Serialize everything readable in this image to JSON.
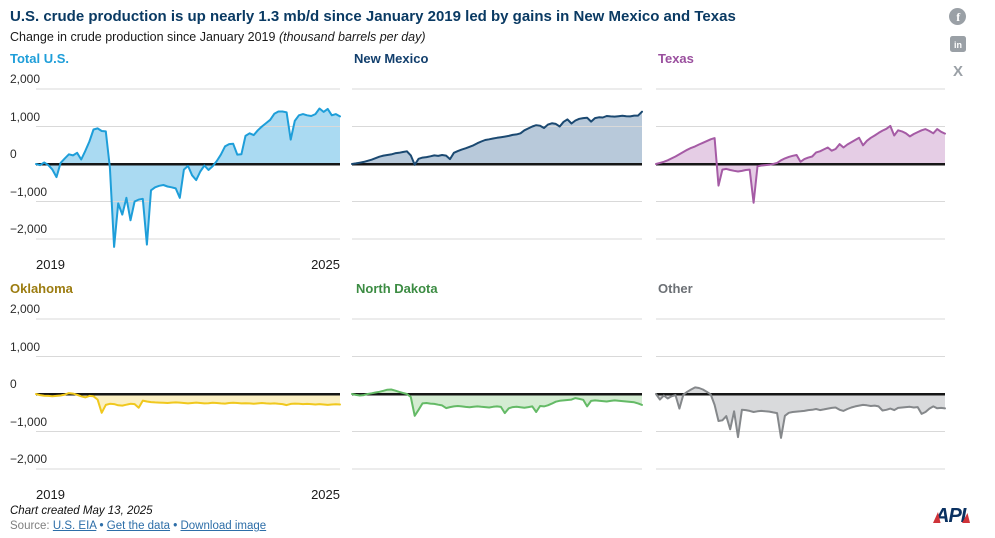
{
  "header": {
    "title": "U.S. crude production is up nearly 1.3 mb/d since January 2019 led by gains in New Mexico and Texas",
    "subtitle_plain": "Change in crude production since January 2019 ",
    "subtitle_italic": "(thousand barrels per day)"
  },
  "share": {
    "facebook_glyph": "f",
    "linkedin_glyph": "in",
    "x_glyph": "X",
    "icon_color": "#9aa0a6"
  },
  "axes": {
    "y_ticks": [
      2000,
      1000,
      0,
      -1000,
      -2000
    ],
    "y_tick_labels": [
      "2,000",
      "1,000",
      "0",
      "−1,000",
      "−2,000"
    ],
    "x_tick_labels": [
      "2019",
      "2025"
    ],
    "gridline_color": "#d9d9d9",
    "zero_line_color": "#161616"
  },
  "chart_data": [
    {
      "type": "area",
      "title": "Total U.S.",
      "title_color": "#1e9ed9",
      "line_color": "#1e9ed9",
      "fill_color": "#aadaf2",
      "x_range": [
        "2019",
        "2025"
      ],
      "ylim": [
        -2400,
        2400
      ],
      "values": [
        0,
        -30,
        40,
        -30,
        -150,
        -350,
        30,
        150,
        260,
        230,
        300,
        120,
        350,
        600,
        920,
        950,
        880,
        870,
        -100,
        -2210,
        -1050,
        -1350,
        -900,
        -1500,
        -1000,
        -950,
        -930,
        -2150,
        -700,
        -620,
        -580,
        -560,
        -600,
        -620,
        -650,
        -900,
        -150,
        -50,
        -300,
        -430,
        -200,
        -40,
        -160,
        -60,
        80,
        250,
        470,
        530,
        540,
        250,
        260,
        750,
        820,
        770,
        900,
        1000,
        1090,
        1180,
        1340,
        1400,
        1400,
        1380,
        650,
        1150,
        1300,
        1330,
        1300,
        1280,
        1330,
        1480,
        1390,
        1470,
        1300,
        1330,
        1270
      ]
    },
    {
      "type": "area",
      "title": "New Mexico",
      "title_color": "#123f6d",
      "line_color": "#1b4971",
      "fill_color": "#b8c9da",
      "x_range": [
        "2019",
        "2025"
      ],
      "ylim": [
        -2400,
        2400
      ],
      "values": [
        0,
        15,
        35,
        55,
        85,
        115,
        155,
        195,
        225,
        240,
        255,
        285,
        300,
        320,
        340,
        230,
        -20,
        140,
        170,
        185,
        205,
        230,
        215,
        240,
        225,
        130,
        300,
        345,
        385,
        420,
        460,
        500,
        555,
        600,
        640,
        660,
        680,
        700,
        715,
        730,
        750,
        775,
        790,
        820,
        900,
        950,
        1000,
        1035,
        1020,
        960,
        1050,
        1085,
        1070,
        1000,
        1125,
        1190,
        1080,
        1160,
        1205,
        1225,
        1235,
        1130,
        1225,
        1245,
        1240,
        1280,
        1270,
        1265,
        1275,
        1285,
        1275,
        1270,
        1290,
        1290,
        1395
      ]
    },
    {
      "type": "area",
      "title": "Texas",
      "title_color": "#9a4f9e",
      "line_color": "#a55ba5",
      "fill_color": "#e5cde5",
      "x_range": [
        "2019",
        "2025"
      ],
      "ylim": [
        -2400,
        2400
      ],
      "values": [
        0,
        30,
        60,
        100,
        150,
        200,
        260,
        320,
        380,
        430,
        470,
        520,
        565,
        610,
        660,
        690,
        -575,
        -150,
        -130,
        -160,
        -180,
        -200,
        -185,
        -160,
        -150,
        -1035,
        -60,
        -40,
        -30,
        -20,
        0,
        30,
        100,
        150,
        190,
        220,
        240,
        60,
        130,
        170,
        200,
        310,
        340,
        390,
        440,
        355,
        400,
        530,
        440,
        520,
        580,
        640,
        700,
        500,
        620,
        700,
        760,
        830,
        890,
        940,
        1015,
        760,
        900,
        870,
        820,
        735,
        800,
        850,
        900,
        930,
        880,
        820,
        930,
        860,
        810
      ]
    },
    {
      "type": "area",
      "title": "Oklahoma",
      "title_color": "#9c7c10",
      "line_color": "#f0c81e",
      "fill_color": "#fbf0c4",
      "x_range": [
        "2019",
        "2025"
      ],
      "ylim": [
        -2400,
        2400
      ],
      "values": [
        0,
        -30,
        -45,
        -50,
        -60,
        -50,
        -40,
        -15,
        25,
        10,
        -20,
        -60,
        -90,
        -50,
        -60,
        -150,
        -500,
        -290,
        -260,
        -270,
        -300,
        -310,
        -285,
        -260,
        -270,
        -365,
        -175,
        -200,
        -215,
        -225,
        -230,
        -235,
        -240,
        -230,
        -225,
        -230,
        -240,
        -250,
        -240,
        -230,
        -240,
        -250,
        -245,
        -235,
        -240,
        -250,
        -255,
        -240,
        -235,
        -240,
        -250,
        -245,
        -250,
        -260,
        -250,
        -240,
        -250,
        -255,
        -250,
        -260,
        -270,
        -295,
        -265,
        -255,
        -260,
        -270,
        -265,
        -270,
        -280,
        -270,
        -280,
        -290,
        -280,
        -275,
        -280
      ]
    },
    {
      "type": "area",
      "title": "North Dakota",
      "title_color": "#3c8c43",
      "line_color": "#64ba66",
      "fill_color": "#d4ecd2",
      "x_range": [
        "2019",
        "2025"
      ],
      "ylim": [
        -2400,
        2400
      ],
      "values": [
        0,
        -25,
        -40,
        -30,
        0,
        20,
        40,
        60,
        85,
        115,
        120,
        90,
        60,
        30,
        0,
        -80,
        -580,
        -420,
        -250,
        -240,
        -255,
        -265,
        -285,
        -305,
        -375,
        -350,
        -330,
        -320,
        -330,
        -345,
        -355,
        -340,
        -330,
        -340,
        -350,
        -360,
        -340,
        -330,
        -345,
        -510,
        -380,
        -350,
        -340,
        -355,
        -365,
        -350,
        -330,
        -480,
        -320,
        -330,
        -300,
        -255,
        -205,
        -180,
        -170,
        -160,
        -150,
        -110,
        -130,
        -155,
        -330,
        -185,
        -170,
        -180,
        -190,
        -200,
        -185,
        -170,
        -180,
        -190,
        -200,
        -210,
        -220,
        -250,
        -290
      ]
    },
    {
      "type": "area",
      "title": "Other",
      "title_color": "#6c7075",
      "line_color": "#85888b",
      "fill_color": "#d9dadc",
      "x_range": [
        "2019",
        "2025"
      ],
      "ylim": [
        -2400,
        2400
      ],
      "values": [
        0,
        -150,
        -40,
        -120,
        -60,
        -30,
        -390,
        -20,
        60,
        120,
        175,
        160,
        120,
        60,
        -10,
        -290,
        -720,
        -700,
        -590,
        -940,
        -460,
        -1150,
        -420,
        -430,
        -450,
        -480,
        -460,
        -450,
        -460,
        -470,
        -490,
        -510,
        -1170,
        -580,
        -500,
        -480,
        -470,
        -460,
        -450,
        -430,
        -420,
        -400,
        -430,
        -410,
        -390,
        -370,
        -360,
        -420,
        -450,
        -400,
        -360,
        -330,
        -310,
        -290,
        -300,
        -320,
        -310,
        -330,
        -440,
        -420,
        -390,
        -430,
        -370,
        -360,
        -350,
        -340,
        -360,
        -350,
        -530,
        -480,
        -390,
        -330,
        -380,
        -370,
        -385
      ]
    }
  ],
  "footer": {
    "created": "Chart created May 13, 2025",
    "source_label": "Source:",
    "source_link": "U.S. EIA",
    "sep": "•",
    "link_get_data": "Get the data",
    "link_download": "Download image",
    "logo_text": "API",
    "logo_navy": "#0a3161",
    "logo_red": "#cf3339"
  }
}
